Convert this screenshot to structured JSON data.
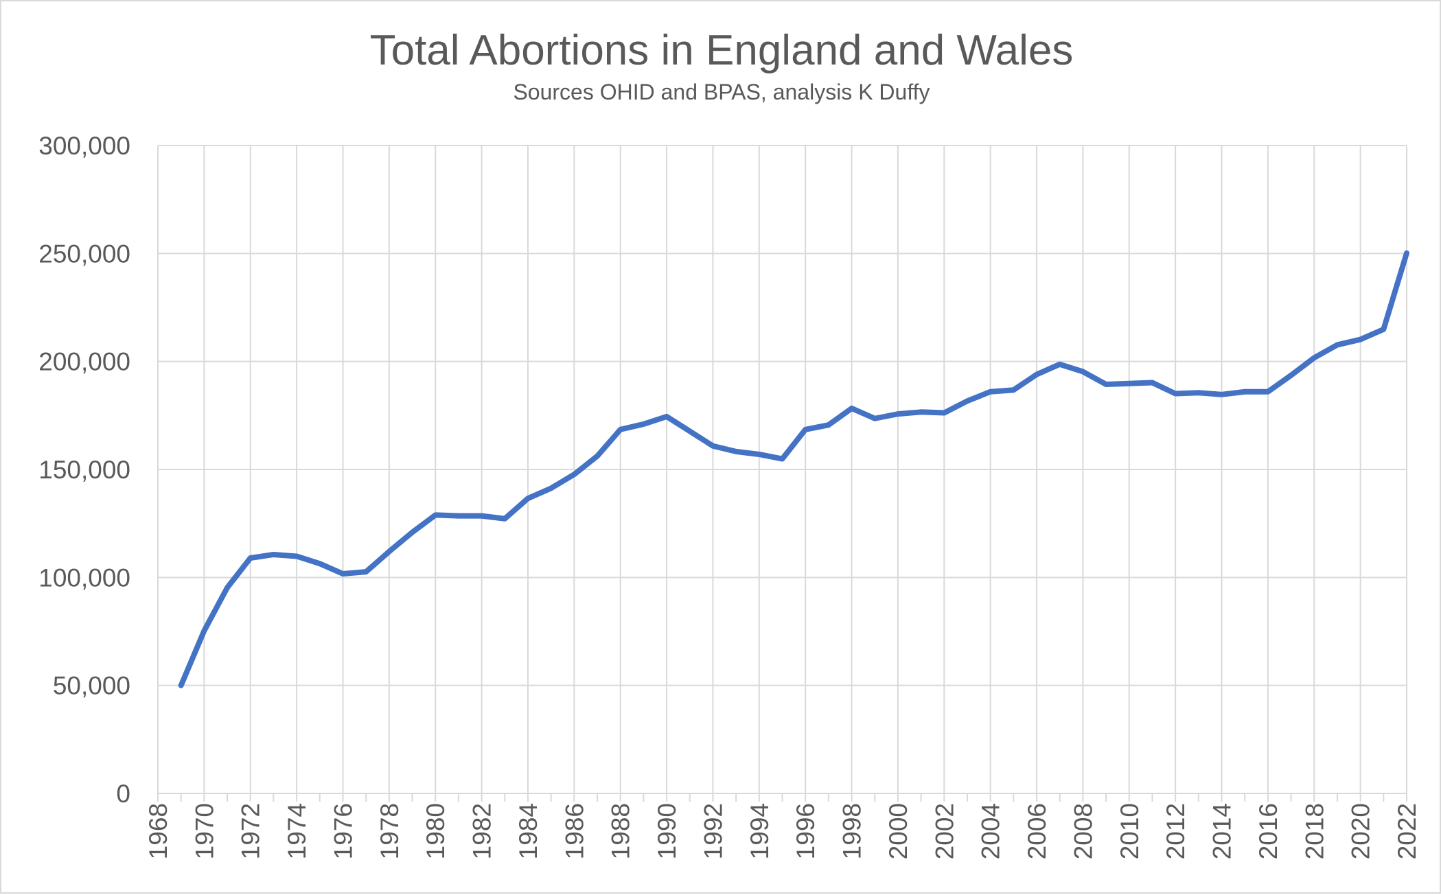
{
  "chart_data": {
    "type": "line",
    "title": "Total Abortions in England and Wales",
    "subtitle": "Sources OHID and BPAS, analysis  K Duffy",
    "xlabel": "",
    "ylabel": "",
    "xlim": [
      1968,
      2022
    ],
    "ylim": [
      0,
      300000
    ],
    "x_ticks": [
      "1968",
      "1970",
      "1972",
      "1974",
      "1976",
      "1978",
      "1980",
      "1982",
      "1984",
      "1986",
      "1988",
      "1990",
      "1992",
      "1994",
      "1996",
      "1998",
      "2000",
      "2002",
      "2004",
      "2006",
      "2008",
      "2010",
      "2012",
      "2014",
      "2016",
      "2018",
      "2020",
      "2022"
    ],
    "y_ticks": [
      "0",
      "50,000",
      "100,000",
      "150,000",
      "200,000",
      "250,000",
      "300,000"
    ],
    "grid": true,
    "legend": "none",
    "line_color": "#4472C4",
    "series": [
      {
        "x": [
          1969,
          1970,
          1971,
          1972,
          1973,
          1974,
          1975,
          1976,
          1977,
          1978,
          1979,
          1980,
          1981,
          1982,
          1983,
          1984,
          1985,
          1986,
          1987,
          1988,
          1989,
          1990,
          1991,
          1992,
          1993,
          1994,
          1995,
          1996,
          1997,
          1998,
          1999,
          2000,
          2001,
          2002,
          2003,
          2004,
          2005,
          2006,
          2007,
          2008,
          2009,
          2010,
          2011,
          2012,
          2013,
          2014,
          2015,
          2016,
          2017,
          2018,
          2019,
          2020,
          2021,
          2022
        ],
        "values": [
          50000,
          75300,
          95300,
          109000,
          110600,
          109800,
          106400,
          101700,
          102600,
          112000,
          120900,
          128900,
          128500,
          128500,
          127200,
          136600,
          141300,
          147700,
          156200,
          168500,
          171000,
          174500,
          167700,
          160900,
          158300,
          157000,
          154900,
          168500,
          170600,
          178300,
          173600,
          175700,
          176600,
          176200,
          181700,
          186000,
          186800,
          194000,
          198700,
          195300,
          189400,
          189800,
          190200,
          185100,
          185500,
          184700,
          186000,
          186000,
          193600,
          201700,
          207700,
          210200,
          214900,
          250200
        ]
      }
    ]
  }
}
